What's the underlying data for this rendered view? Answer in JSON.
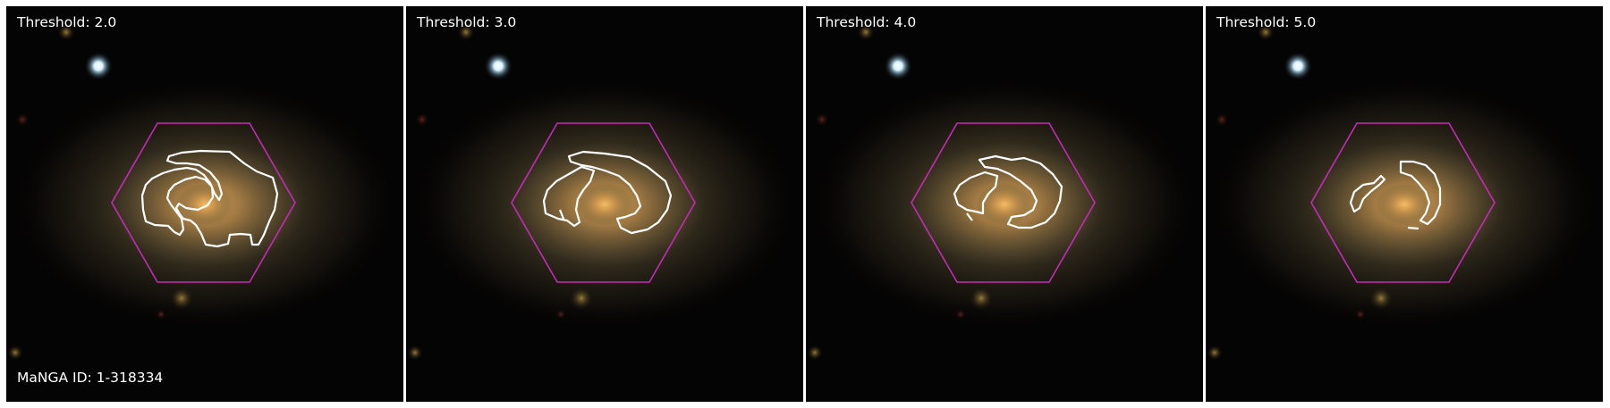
{
  "figure": {
    "panels": [
      {
        "threshold_label": "Threshold: 2.0"
      },
      {
        "threshold_label": "Threshold: 3.0"
      },
      {
        "threshold_label": "Threshold: 4.0"
      },
      {
        "threshold_label": "Threshold: 5.0"
      }
    ],
    "manga_id_label": "MaNGA ID: 1-318334",
    "colors": {
      "hexagon": "#c52ab8",
      "contour": "#ffffff",
      "background": "#050404",
      "galaxy_core": "#e6a64c",
      "galaxy_disk": "#6f5f3c",
      "foreground_star": "#d8f2ff"
    }
  }
}
